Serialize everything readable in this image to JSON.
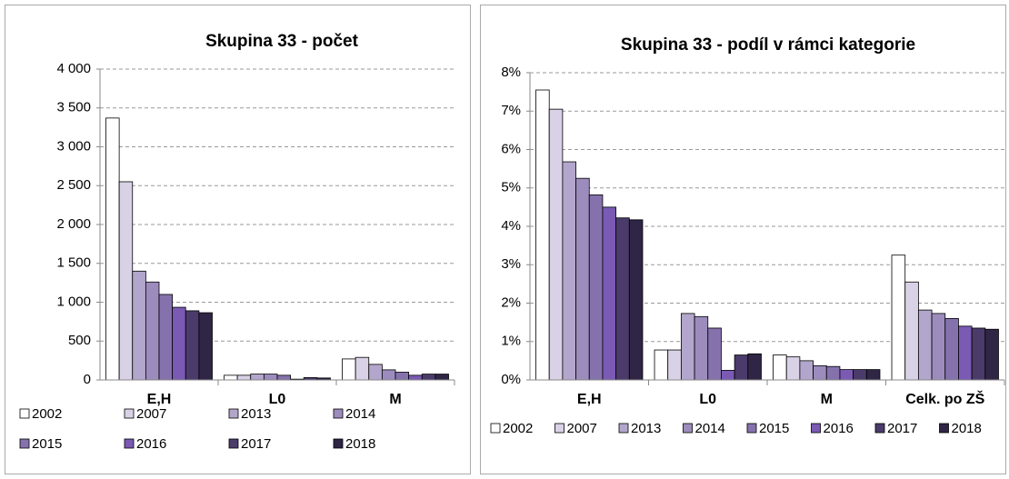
{
  "chart_data": [
    {
      "type": "bar",
      "title": "Skupina 33 - počet",
      "categories": [
        "E,H",
        "L0",
        "M"
      ],
      "series": [
        {
          "name": "2002",
          "color": "#ffffff",
          "values": [
            3370,
            60,
            270
          ]
        },
        {
          "name": "2007",
          "color": "#d9d2e6",
          "values": [
            2550,
            60,
            290
          ]
        },
        {
          "name": "2013",
          "color": "#b3a6cc",
          "values": [
            1400,
            75,
            200
          ]
        },
        {
          "name": "2014",
          "color": "#9c8cbd",
          "values": [
            1260,
            75,
            130
          ]
        },
        {
          "name": "2015",
          "color": "#8572ad",
          "values": [
            1100,
            60,
            100
          ]
        },
        {
          "name": "2016",
          "color": "#7a5ab3",
          "values": [
            935,
            10,
            60
          ]
        },
        {
          "name": "2017",
          "color": "#4a3b6b",
          "values": [
            890,
            30,
            75
          ]
        },
        {
          "name": "2018",
          "color": "#2f2545",
          "values": [
            865,
            25,
            75
          ]
        }
      ],
      "ylim": [
        0,
        4000
      ],
      "yticks": [
        0,
        500,
        {
          "value": 1000,
          "label": "1 000"
        },
        {
          "value": 1500,
          "label": "1 500"
        },
        {
          "value": 2000,
          "label": "2 000"
        },
        {
          "value": 2500,
          "label": "2 500"
        },
        {
          "value": 3000,
          "label": "3 000"
        },
        {
          "value": 3500,
          "label": "3 500"
        },
        {
          "value": 4000,
          "label": "4 000"
        }
      ],
      "grid": true
    },
    {
      "type": "bar",
      "title": "Skupina 33 - podíl v rámci kategorie",
      "categories": [
        "E,H",
        "L0",
        "M",
        "Celk. po ZŠ"
      ],
      "series": [
        {
          "name": "2002",
          "color": "#ffffff",
          "values": [
            7.55,
            0.78,
            0.65,
            3.25
          ]
        },
        {
          "name": "2007",
          "color": "#d9d2e6",
          "values": [
            7.05,
            0.78,
            0.6,
            2.55
          ]
        },
        {
          "name": "2013",
          "color": "#b3a6cc",
          "values": [
            5.68,
            1.73,
            0.5,
            1.82
          ]
        },
        {
          "name": "2014",
          "color": "#9c8cbd",
          "values": [
            5.25,
            1.65,
            0.37,
            1.73
          ]
        },
        {
          "name": "2015",
          "color": "#8572ad",
          "values": [
            4.82,
            1.35,
            0.35,
            1.6
          ]
        },
        {
          "name": "2016",
          "color": "#7a5ab3",
          "values": [
            4.5,
            0.25,
            0.27,
            1.4
          ]
        },
        {
          "name": "2017",
          "color": "#4a3b6b",
          "values": [
            4.22,
            0.65,
            0.27,
            1.35
          ]
        },
        {
          "name": "2018",
          "color": "#2f2545",
          "values": [
            4.17,
            0.68,
            0.27,
            1.32
          ]
        }
      ],
      "ylim": [
        0,
        8
      ],
      "yticks": [
        {
          "value": 0,
          "label": "0%"
        },
        {
          "value": 1,
          "label": "1%"
        },
        {
          "value": 2,
          "label": "2%"
        },
        {
          "value": 3,
          "label": "3%"
        },
        {
          "value": 4,
          "label": "4%"
        },
        {
          "value": 5,
          "label": "5%"
        },
        {
          "value": 6,
          "label": "6%"
        },
        {
          "value": 7,
          "label": "7%"
        },
        {
          "value": 8,
          "label": "8%"
        }
      ],
      "grid": true
    }
  ]
}
